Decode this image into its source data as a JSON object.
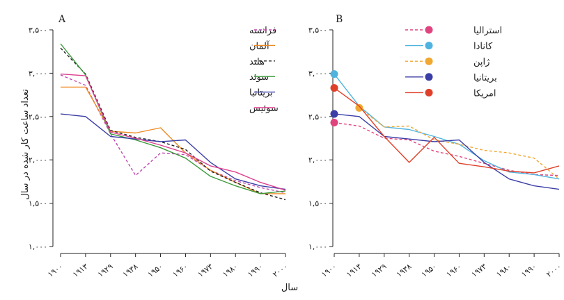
{
  "chart_data": [
    {
      "type": "line",
      "panel_label": "A",
      "ylabel": "تعداد ساعت کار شده در سال",
      "xlabel": "سال",
      "ylim": [
        1000,
        3500
      ],
      "yticks": [
        1000,
        1500,
        2000,
        2500,
        3000,
        3500
      ],
      "ytick_labels": [
        "۱,۰۰۰",
        "۱,۵۰۰",
        "۲,۰۰۰",
        "۲,۵۰۰",
        "۳,۰۰۰",
        "۳,۵۰۰"
      ],
      "xlim": [
        1900,
        2000
      ],
      "xticks": [
        1900,
        1913,
        1929,
        1938,
        1950,
        1960,
        1973,
        1980,
        1990,
        2000
      ],
      "xtick_labels": [
        "۱۹۰۰",
        "۱۹۱۳",
        "۱۹۲۹",
        "۱۹۳۸",
        "۱۹۵۰",
        "۱۹۶۰",
        "۱۹۷۳",
        "۱۹۸۰",
        "۱۹۹۰",
        "۲۰۰۰"
      ],
      "legend_position": "top-right",
      "series": [
        {
          "name": "فرانسه",
          "color": "#bf47b0",
          "dash": "dashed",
          "points": [
            [
              1900,
              2980
            ],
            [
              1913,
              2860
            ],
            [
              1929,
              2300
            ],
            [
              1938,
              1820
            ],
            [
              1950,
              2080
            ],
            [
              1960,
              2060
            ],
            [
              1973,
              1880
            ],
            [
              1980,
              1760
            ],
            [
              1990,
              1680
            ],
            [
              2000,
              1620
            ]
          ]
        },
        {
          "name": "آلمان",
          "color": "#f08a24",
          "dash": "solid",
          "points": [
            [
              1900,
              2840
            ],
            [
              1913,
              2840
            ],
            [
              1929,
              2330
            ],
            [
              1938,
              2310
            ],
            [
              1950,
              2370
            ],
            [
              1960,
              2080
            ],
            [
              1973,
              1880
            ],
            [
              1980,
              1740
            ],
            [
              1990,
              1610
            ],
            [
              2000,
              1610
            ]
          ]
        },
        {
          "name": "هلند",
          "color": "#222222",
          "dash": "dashed",
          "points": [
            [
              1900,
              3290
            ],
            [
              1913,
              2990
            ],
            [
              1929,
              2340
            ],
            [
              1938,
              2260
            ],
            [
              1950,
              2210
            ],
            [
              1960,
              2120
            ],
            [
              1973,
              1870
            ],
            [
              1980,
              1740
            ],
            [
              1990,
              1620
            ],
            [
              2000,
              1540
            ]
          ]
        },
        {
          "name": "سوئد",
          "color": "#3a9a3a",
          "dash": "solid",
          "points": [
            [
              1900,
              3340
            ],
            [
              1913,
              2980
            ],
            [
              1929,
              2300
            ],
            [
              1938,
              2230
            ],
            [
              1950,
              2140
            ],
            [
              1960,
              2020
            ],
            [
              1973,
              1810
            ],
            [
              1980,
              1700
            ],
            [
              1990,
              1610
            ],
            [
              2000,
              1640
            ]
          ]
        },
        {
          "name": "بریتانیا",
          "color": "#3b3ea6",
          "dash": "solid",
          "points": [
            [
              1900,
              2530
            ],
            [
              1913,
              2500
            ],
            [
              1929,
              2270
            ],
            [
              1938,
              2240
            ],
            [
              1950,
              2210
            ],
            [
              1960,
              2230
            ],
            [
              1973,
              1970
            ],
            [
              1980,
              1780
            ],
            [
              1990,
              1700
            ],
            [
              2000,
              1660
            ]
          ]
        },
        {
          "name": "سوئیس",
          "color": "#de3f8e",
          "dash": "solid",
          "points": [
            [
              1900,
              2990
            ],
            [
              1913,
              2970
            ],
            [
              1929,
              2320
            ],
            [
              1938,
              2250
            ],
            [
              1950,
              2170
            ],
            [
              1960,
              2080
            ],
            [
              1973,
              1930
            ],
            [
              1980,
              1860
            ],
            [
              1990,
              1740
            ],
            [
              2000,
              1650
            ]
          ]
        }
      ]
    },
    {
      "type": "line",
      "panel_label": "B",
      "ylim": [
        1000,
        3500
      ],
      "yticks": [
        1000,
        1500,
        2000,
        2500,
        3000,
        3500
      ],
      "ytick_labels": [
        "۱,۰۰۰",
        "۱,۵۰۰",
        "۲,۰۰۰",
        "۲,۵۰۰",
        "۳,۰۰۰",
        "۳,۵۰۰"
      ],
      "xlim": [
        1900,
        2000
      ],
      "xticks": [
        1900,
        1913,
        1929,
        1938,
        1950,
        1960,
        1973,
        1980,
        1990,
        2000
      ],
      "xtick_labels": [
        "۱۹۰۰",
        "۱۹۱۳",
        "۱۹۲۹",
        "۱۹۳۸",
        "۱۹۵۰",
        "۱۹۶۰",
        "۱۹۷۳",
        "۱۹۸۰",
        "۱۹۹۰",
        "۲۰۰۰"
      ],
      "legend_position": "top-right",
      "series": [
        {
          "name": "استرالیا",
          "color": "#e0447e",
          "dash": "dashed",
          "start_marker": true,
          "points": [
            [
              1900,
              2430
            ],
            [
              1913,
              2390
            ],
            [
              1929,
              2250
            ],
            [
              1938,
              2230
            ],
            [
              1950,
              2100
            ],
            [
              1960,
              2040
            ],
            [
              1973,
              1960
            ],
            [
              1980,
              1880
            ],
            [
              1990,
              1830
            ],
            [
              2000,
              1820
            ]
          ]
        },
        {
          "name": "کانادا",
          "color": "#4fb3e0",
          "dash": "solid",
          "start_marker": true,
          "points": [
            [
              1900,
              2990
            ],
            [
              1913,
              2620
            ],
            [
              1929,
              2380
            ],
            [
              1938,
              2350
            ],
            [
              1950,
              2270
            ],
            [
              1960,
              2180
            ],
            [
              1973,
              1990
            ],
            [
              1980,
              1860
            ],
            [
              1990,
              1830
            ],
            [
              2000,
              1780
            ]
          ]
        },
        {
          "name": "ژاپن",
          "color": "#f0a830",
          "dash": "dashed",
          "start_marker": true,
          "start_x": 1913,
          "points": [
            [
              1913,
              2600
            ],
            [
              1929,
              2380
            ],
            [
              1938,
              2390
            ],
            [
              1950,
              2230
            ],
            [
              1960,
              2180
            ],
            [
              1973,
              2110
            ],
            [
              1980,
              2080
            ],
            [
              1990,
              2020
            ],
            [
              2000,
              1780
            ]
          ]
        },
        {
          "name": "بریتانیا",
          "color": "#3b3ea6",
          "dash": "solid",
          "start_marker": true,
          "points": [
            [
              1900,
              2530
            ],
            [
              1913,
              2500
            ],
            [
              1929,
              2270
            ],
            [
              1938,
              2240
            ],
            [
              1950,
              2210
            ],
            [
              1960,
              2230
            ],
            [
              1973,
              1970
            ],
            [
              1980,
              1780
            ],
            [
              1990,
              1700
            ],
            [
              2000,
              1660
            ]
          ]
        },
        {
          "name": "امریکا",
          "color": "#e0402a",
          "dash": "solid",
          "start_marker": true,
          "points": [
            [
              1900,
              2830
            ],
            [
              1913,
              2620
            ],
            [
              1929,
              2270
            ],
            [
              1938,
              1970
            ],
            [
              1950,
              2260
            ],
            [
              1960,
              1960
            ],
            [
              1973,
              1920
            ],
            [
              1980,
              1870
            ],
            [
              1990,
              1850
            ],
            [
              2000,
              1930
            ]
          ]
        }
      ]
    }
  ]
}
